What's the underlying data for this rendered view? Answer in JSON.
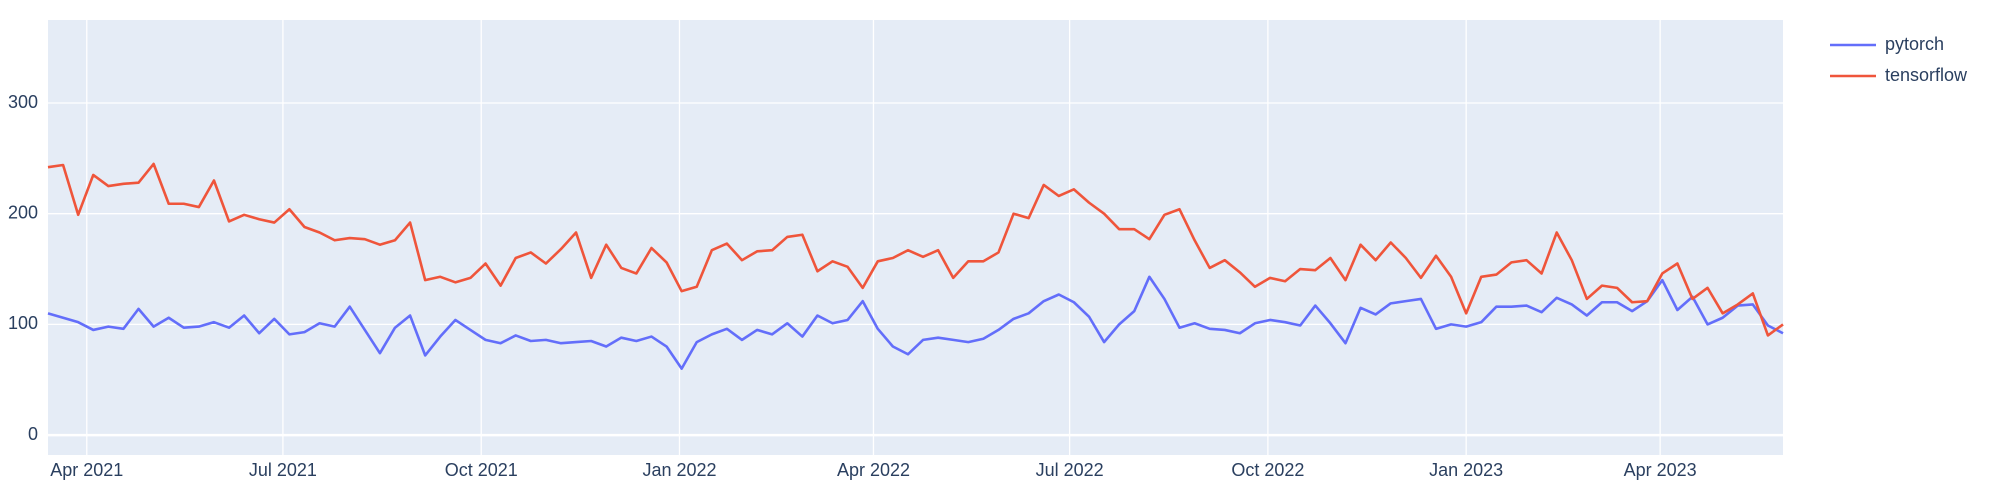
{
  "chart_data": {
    "type": "line",
    "x": [
      "2021-03-14",
      "2021-03-21",
      "2021-03-28",
      "2021-04-04",
      "2021-04-11",
      "2021-04-18",
      "2021-04-25",
      "2021-05-02",
      "2021-05-09",
      "2021-05-16",
      "2021-05-23",
      "2021-05-30",
      "2021-06-06",
      "2021-06-13",
      "2021-06-20",
      "2021-06-27",
      "2021-07-04",
      "2021-07-11",
      "2021-07-18",
      "2021-07-25",
      "2021-08-01",
      "2021-08-08",
      "2021-08-15",
      "2021-08-22",
      "2021-08-29",
      "2021-09-05",
      "2021-09-12",
      "2021-09-19",
      "2021-09-26",
      "2021-10-03",
      "2021-10-10",
      "2021-10-17",
      "2021-10-24",
      "2021-10-31",
      "2021-11-07",
      "2021-11-14",
      "2021-11-21",
      "2021-11-28",
      "2021-12-05",
      "2021-12-12",
      "2021-12-19",
      "2021-12-26",
      "2022-01-02",
      "2022-01-09",
      "2022-01-16",
      "2022-01-23",
      "2022-01-30",
      "2022-02-06",
      "2022-02-13",
      "2022-02-20",
      "2022-02-27",
      "2022-03-06",
      "2022-03-13",
      "2022-03-20",
      "2022-03-27",
      "2022-04-03",
      "2022-04-10",
      "2022-04-17",
      "2022-04-24",
      "2022-05-01",
      "2022-05-08",
      "2022-05-15",
      "2022-05-22",
      "2022-05-29",
      "2022-06-05",
      "2022-06-12",
      "2022-06-19",
      "2022-06-26",
      "2022-07-03",
      "2022-07-10",
      "2022-07-17",
      "2022-07-24",
      "2022-07-31",
      "2022-08-07",
      "2022-08-14",
      "2022-08-21",
      "2022-08-28",
      "2022-09-04",
      "2022-09-11",
      "2022-09-18",
      "2022-09-25",
      "2022-10-02",
      "2022-10-09",
      "2022-10-16",
      "2022-10-23",
      "2022-10-30",
      "2022-11-06",
      "2022-11-13",
      "2022-11-20",
      "2022-11-27",
      "2022-12-04",
      "2022-12-11",
      "2022-12-18",
      "2022-12-25",
      "2023-01-01",
      "2023-01-08",
      "2023-01-15",
      "2023-01-22",
      "2023-01-29",
      "2023-02-05",
      "2023-02-12",
      "2023-02-19",
      "2023-02-26",
      "2023-03-05",
      "2023-03-12",
      "2023-03-19",
      "2023-03-26",
      "2023-04-02",
      "2023-04-09",
      "2023-04-16",
      "2023-04-23",
      "2023-04-30",
      "2023-05-07",
      "2023-05-14",
      "2023-05-21",
      "2023-05-28"
    ],
    "series": [
      {
        "name": "pytorch",
        "color": "#636efa",
        "values": [
          110,
          106,
          102,
          95,
          98,
          96,
          114,
          98,
          106,
          97,
          98,
          102,
          97,
          108,
          92,
          105,
          91,
          93,
          101,
          98,
          116,
          95,
          74,
          97,
          108,
          72,
          89,
          104,
          95,
          86,
          83,
          90,
          85,
          86,
          83,
          84,
          85,
          80,
          88,
          85,
          89,
          80,
          60,
          84,
          91,
          96,
          86,
          95,
          91,
          101,
          89,
          108,
          101,
          104,
          121,
          96,
          80,
          73,
          86,
          88,
          86,
          84,
          87,
          95,
          105,
          110,
          121,
          127,
          120,
          107,
          84,
          100,
          112,
          143,
          123,
          97,
          101,
          96,
          95,
          92,
          101,
          104,
          102,
          99,
          117,
          101,
          83,
          115,
          109,
          119,
          121,
          123,
          96,
          100,
          98,
          102,
          116,
          116,
          117,
          111,
          124,
          118,
          108,
          120,
          120,
          112,
          121,
          140,
          113,
          125,
          100,
          106,
          117,
          118,
          99,
          92
        ]
      },
      {
        "name": "tensorflow",
        "color": "#EF553B",
        "values": [
          242,
          244,
          199,
          235,
          225,
          227,
          228,
          245,
          209,
          209,
          206,
          230,
          193,
          199,
          195,
          192,
          204,
          188,
          183,
          176,
          178,
          177,
          172,
          176,
          192,
          140,
          143,
          138,
          142,
          155,
          135,
          160,
          165,
          155,
          168,
          183,
          142,
          172,
          151,
          146,
          169,
          156,
          130,
          134,
          167,
          173,
          158,
          166,
          167,
          179,
          181,
          148,
          157,
          152,
          133,
          157,
          160,
          167,
          161,
          167,
          142,
          157,
          157,
          165,
          200,
          196,
          226,
          216,
          222,
          210,
          200,
          186,
          186,
          177,
          199,
          204,
          176,
          151,
          158,
          147,
          134,
          142,
          139,
          150,
          149,
          160,
          140,
          172,
          158,
          174,
          160,
          142,
          162,
          143,
          110,
          143,
          145,
          156,
          158,
          146,
          183,
          158,
          123,
          135,
          133,
          120,
          121,
          146,
          155,
          123,
          133,
          110,
          118,
          128,
          90,
          100
        ]
      }
    ],
    "xlim": [
      "2021-03-14",
      "2023-05-28"
    ],
    "xticks": [
      {
        "value": "2021-04-01",
        "label": "Apr 2021"
      },
      {
        "value": "2021-07-01",
        "label": "Jul 2021"
      },
      {
        "value": "2021-10-01",
        "label": "Oct 2021"
      },
      {
        "value": "2022-01-01",
        "label": "Jan 2022"
      },
      {
        "value": "2022-04-01",
        "label": "Apr 2022"
      },
      {
        "value": "2022-07-01",
        "label": "Jul 2022"
      },
      {
        "value": "2022-10-01",
        "label": "Oct 2022"
      },
      {
        "value": "2023-01-01",
        "label": "Jan 2023"
      },
      {
        "value": "2023-04-01",
        "label": "Apr 2023"
      }
    ],
    "ylim": [
      -18,
      375
    ],
    "yticks": [
      0,
      100,
      200,
      300
    ],
    "grid": true,
    "legend": "right"
  }
}
